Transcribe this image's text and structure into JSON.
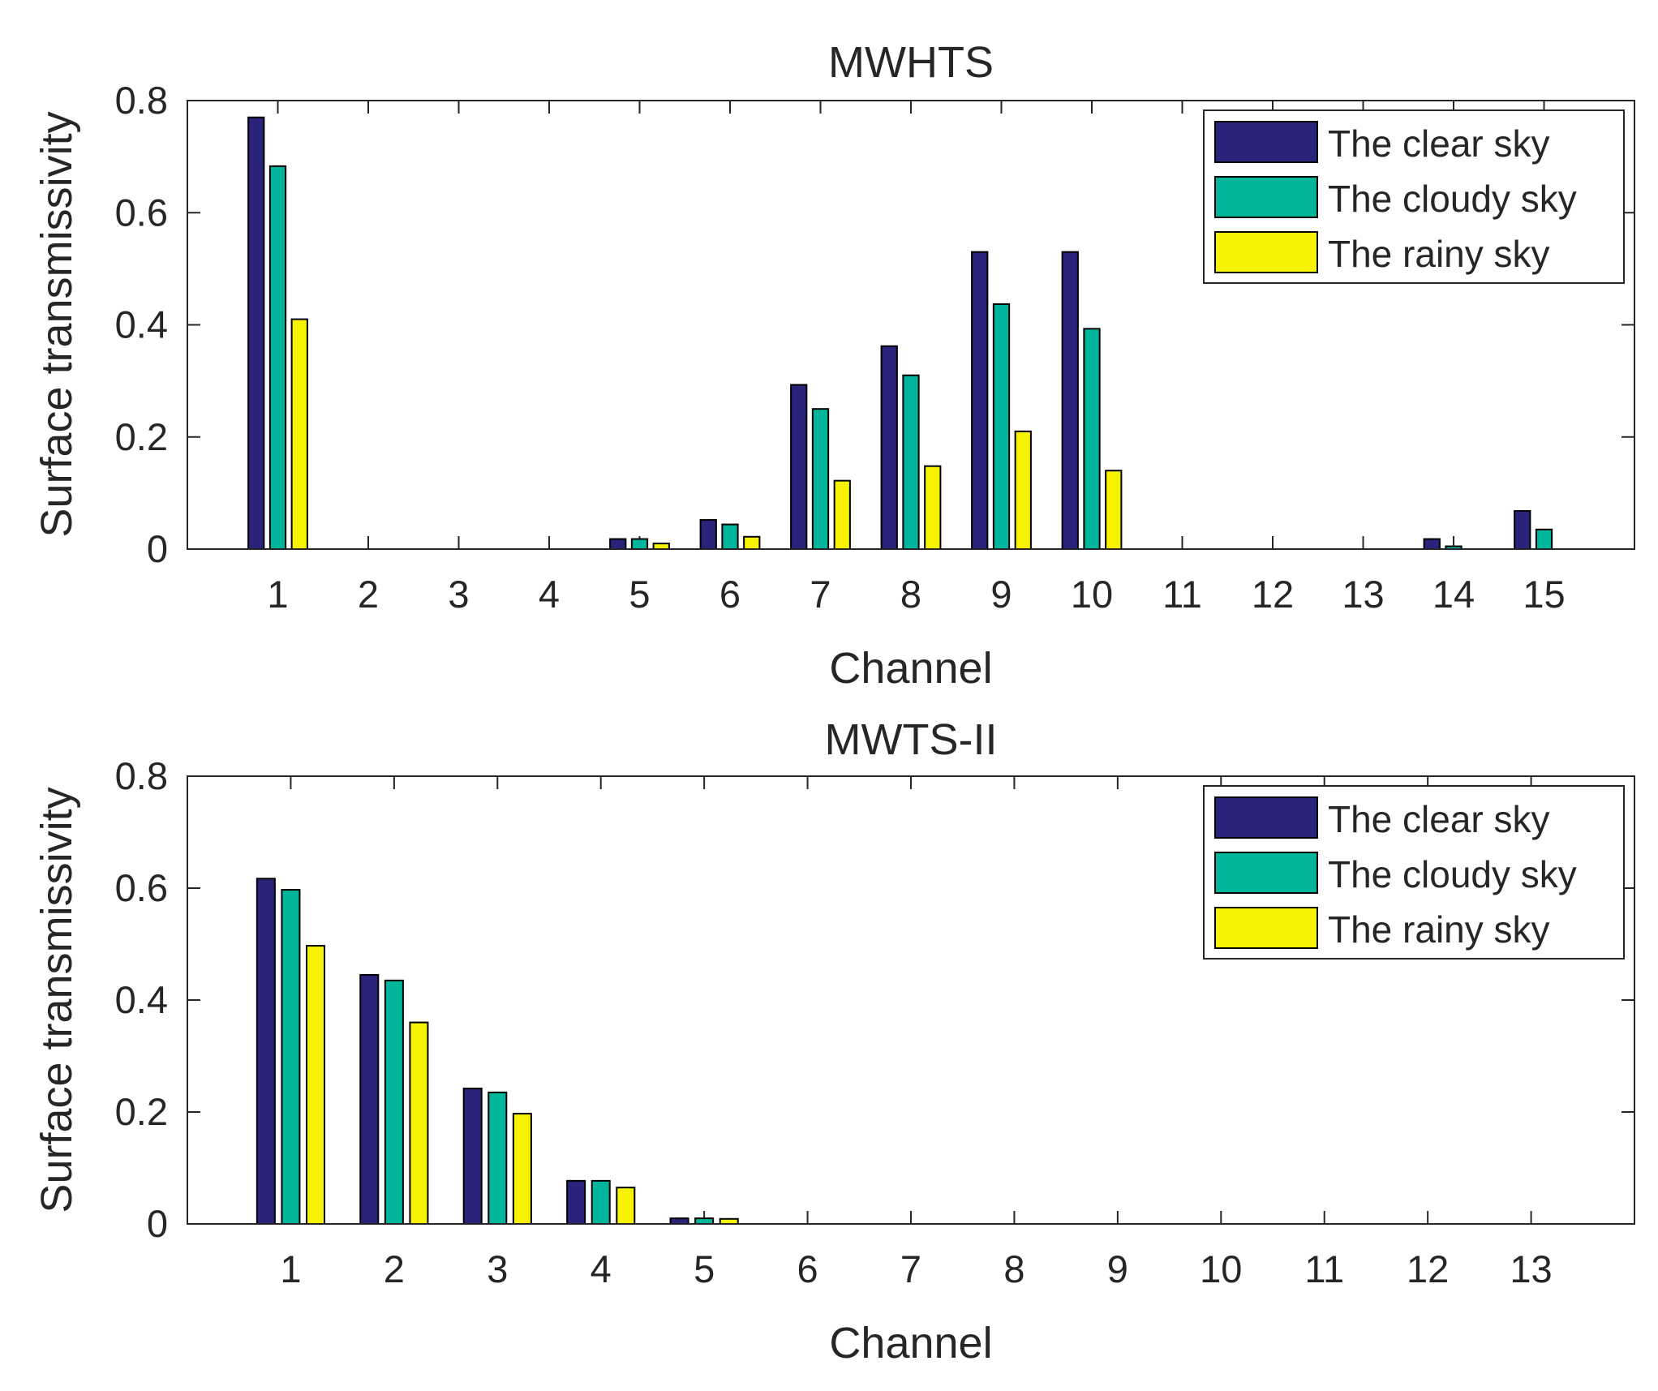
{
  "chart_data": [
    {
      "type": "bar",
      "title": "MWHTS",
      "xlabel": "Channel",
      "ylabel": "Surface transmissivity",
      "ylim": [
        0,
        0.8
      ],
      "xlim": [
        0,
        16
      ],
      "yticks": [
        0,
        0.2,
        0.4,
        0.6,
        0.8
      ],
      "ytick_labels": [
        "0",
        "0.2",
        "0.4",
        "0.6",
        "0.8"
      ],
      "categories": [
        "1",
        "2",
        "3",
        "4",
        "5",
        "6",
        "7",
        "8",
        "9",
        "10",
        "11",
        "12",
        "13",
        "14",
        "15"
      ],
      "legend_position": "top-right",
      "series": [
        {
          "name": "The clear sky",
          "color": "#2a237c",
          "values": [
            0.77,
            0.0,
            0.0,
            0.0,
            0.018,
            0.052,
            0.293,
            0.362,
            0.53,
            0.53,
            0.0,
            0.0,
            0.0,
            0.018,
            0.068
          ]
        },
        {
          "name": "The cloudy sky",
          "color": "#00b59b",
          "values": [
            0.683,
            0.0,
            0.0,
            0.0,
            0.018,
            0.044,
            0.25,
            0.31,
            0.437,
            0.393,
            0.0,
            0.0,
            0.0,
            0.005,
            0.035
          ]
        },
        {
          "name": "The rainy sky",
          "color": "#f7f200",
          "values": [
            0.41,
            0.0,
            0.0,
            0.0,
            0.01,
            0.022,
            0.122,
            0.148,
            0.21,
            0.14,
            0.0,
            0.0,
            0.0,
            0.0,
            0.0
          ]
        }
      ]
    },
    {
      "type": "bar",
      "title": "MWTS-II",
      "xlabel": "Channel",
      "ylabel": "Surface transmissivity",
      "ylim": [
        0,
        0.8
      ],
      "xlim": [
        0,
        14
      ],
      "yticks": [
        0,
        0.2,
        0.4,
        0.6,
        0.8
      ],
      "ytick_labels": [
        "0",
        "0.2",
        "0.4",
        "0.6",
        "0.8"
      ],
      "categories": [
        "1",
        "2",
        "3",
        "4",
        "5",
        "6",
        "7",
        "8",
        "9",
        "10",
        "11",
        "12",
        "13"
      ],
      "legend_position": "top-right",
      "series": [
        {
          "name": "The clear sky",
          "color": "#2a237c",
          "values": [
            0.617,
            0.445,
            0.242,
            0.077,
            0.01,
            0.0,
            0.0,
            0.0,
            0.0,
            0.0,
            0.0,
            0.0,
            0.0
          ]
        },
        {
          "name": "The cloudy sky",
          "color": "#00b59b",
          "values": [
            0.597,
            0.435,
            0.235,
            0.077,
            0.01,
            0.0,
            0.0,
            0.0,
            0.0,
            0.0,
            0.0,
            0.0,
            0.0
          ]
        },
        {
          "name": "The rainy sky",
          "color": "#f7f200",
          "values": [
            0.497,
            0.36,
            0.197,
            0.065,
            0.009,
            0.0,
            0.0,
            0.0,
            0.0,
            0.0,
            0.0,
            0.0,
            0.0
          ]
        }
      ]
    }
  ]
}
